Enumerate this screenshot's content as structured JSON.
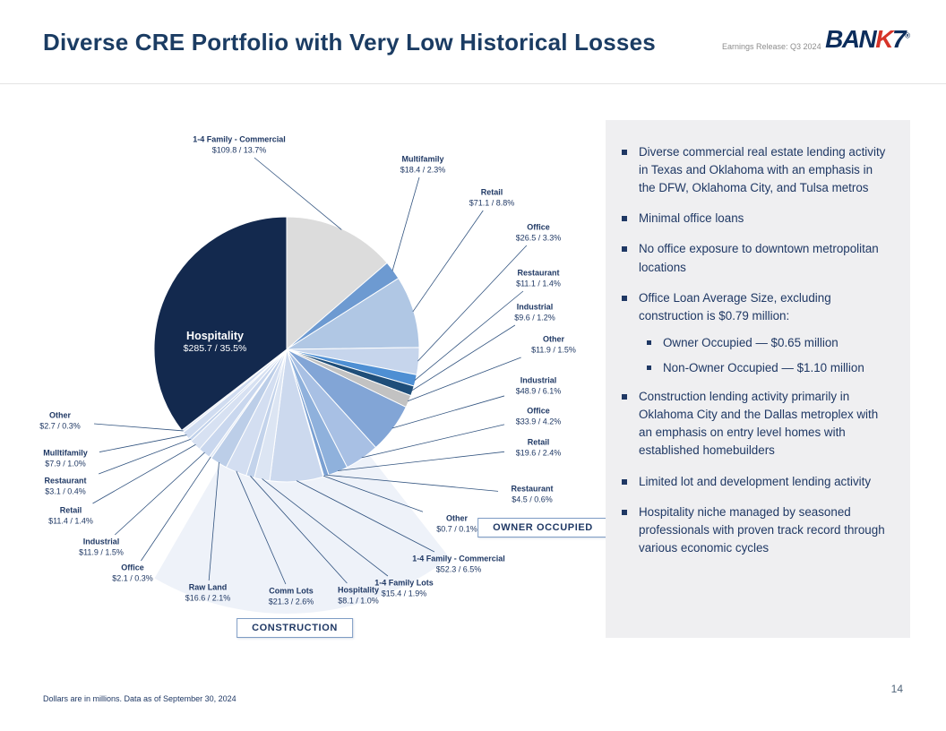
{
  "header": {
    "title": "Diverse CRE Portfolio with Very Low Historical Losses",
    "earnings_label": "Earnings Release: Q3 2024",
    "logo": {
      "part1": "BAN",
      "part2": "K",
      "part3": "7",
      "registered": "®"
    }
  },
  "chart": {
    "owner_occupied_label": "OWNER OCCUPIED",
    "construction_label": "CONSTRUCTION"
  },
  "chart_data": {
    "type": "pie",
    "title": "CRE Portfolio Composition",
    "unit": "dollars in millions",
    "total_pct": 100,
    "slices": [
      {
        "label": "1-4 Family - Commercial",
        "value": 109.8,
        "pct": 13.7,
        "group": "non-owner-occupied",
        "color": "#dcdcdc"
      },
      {
        "label": "Multifamily",
        "value": 18.4,
        "pct": 2.3,
        "group": "non-owner-occupied",
        "color": "#6d9ad1"
      },
      {
        "label": "Retail",
        "value": 71.1,
        "pct": 8.8,
        "group": "non-owner-occupied",
        "color": "#b0c7e4"
      },
      {
        "label": "Office",
        "value": 26.5,
        "pct": 3.3,
        "group": "non-owner-occupied",
        "color": "#c6d5ec"
      },
      {
        "label": "Restaurant",
        "value": 11.1,
        "pct": 1.4,
        "group": "non-owner-occupied",
        "color": "#4e8fd3"
      },
      {
        "label": "Industrial",
        "value": 9.6,
        "pct": 1.2,
        "group": "non-owner-occupied",
        "color": "#1f4e79"
      },
      {
        "label": "Other",
        "value": 11.9,
        "pct": 1.5,
        "group": "non-owner-occupied",
        "color": "#c2c2c2"
      },
      {
        "label": "Industrial",
        "value": 48.9,
        "pct": 6.1,
        "group": "owner-occupied",
        "color": "#82a5d6"
      },
      {
        "label": "Office",
        "value": 33.9,
        "pct": 4.2,
        "group": "owner-occupied",
        "color": "#a8c0e4"
      },
      {
        "label": "Retail",
        "value": 19.6,
        "pct": 2.4,
        "group": "owner-occupied",
        "color": "#8fb1dc"
      },
      {
        "label": "Restaurant",
        "value": 4.5,
        "pct": 0.6,
        "group": "owner-occupied",
        "color": "#7aa0d2"
      },
      {
        "label": "Other",
        "value": 0.7,
        "pct": 0.1,
        "group": "owner-occupied",
        "color": "#b0c4e4"
      },
      {
        "label": "1-4 Family - Commercial",
        "value": 52.3,
        "pct": 6.5,
        "group": "owner-occupied",
        "color": "#ccd9ee"
      },
      {
        "label": "1-4 Family Lots",
        "value": 15.4,
        "pct": 1.9,
        "group": "construction",
        "color": "#dce5f3"
      },
      {
        "label": "Hospitality",
        "value": 8.1,
        "pct": 1.0,
        "group": "construction",
        "color": "#c3d3eb"
      },
      {
        "label": "Comm Lots",
        "value": 21.3,
        "pct": 2.6,
        "group": "construction",
        "color": "#d3def1"
      },
      {
        "label": "Raw Land",
        "value": 16.6,
        "pct": 2.1,
        "group": "construction",
        "color": "#bccee8"
      },
      {
        "label": "Office",
        "value": 2.1,
        "pct": 0.3,
        "group": "construction",
        "color": "#e0e8f5"
      },
      {
        "label": "Industrial",
        "value": 11.9,
        "pct": 1.5,
        "group": "construction",
        "color": "#c9d7ee"
      },
      {
        "label": "Retail",
        "value": 11.4,
        "pct": 1.4,
        "group": "construction",
        "color": "#d7e1f2"
      },
      {
        "label": "Restaurant",
        "value": 3.1,
        "pct": 0.4,
        "group": "construction",
        "color": "#bfd0ea"
      },
      {
        "label": "Mulltifamily",
        "value": 7.9,
        "pct": 1.0,
        "group": "construction",
        "color": "#d0dcf0"
      },
      {
        "label": "Other",
        "value": 2.7,
        "pct": 0.3,
        "group": "construction",
        "color": "#e4eaf7"
      },
      {
        "label": "Hospitality",
        "value": 285.7,
        "pct": 35.5,
        "group": "non-owner-occupied",
        "color": "#13294e"
      }
    ]
  },
  "panel": {
    "bullets": [
      {
        "text": "Diverse commercial real estate lending activity in Texas and Oklahoma with an emphasis in the DFW, Oklahoma City, and Tulsa metros",
        "subs": []
      },
      {
        "text": "Minimal office loans",
        "subs": []
      },
      {
        "text": "No office exposure to downtown metropolitan locations",
        "subs": []
      },
      {
        "text": "Office Loan Average Size, excluding construction is $0.79 million:",
        "subs": [
          "Owner Occupied — $0.65 million",
          "Non-Owner Occupied — $1.10 million"
        ]
      },
      {
        "text": "Construction lending activity primarily in Oklahoma City and the Dallas metroplex with an emphasis on entry level homes with established homebuilders",
        "subs": []
      },
      {
        "text": "Limited lot and development lending activity",
        "subs": []
      },
      {
        "text": "Hospitality niche managed by seasoned professionals with proven track record through various economic cycles",
        "subs": []
      }
    ]
  },
  "footer": {
    "note": "Dollars are in millions. Data as of September 30, 2024",
    "page_number": "14"
  }
}
